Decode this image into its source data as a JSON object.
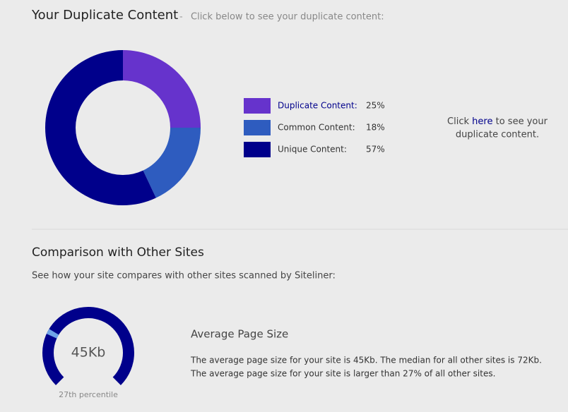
{
  "header": {
    "title": "Your Duplicate Content",
    "separator": "-",
    "subtitle": "Click below to see your duplicate content:"
  },
  "chart_data": {
    "type": "pie",
    "categories": [
      "Duplicate Content:",
      "Common Content:",
      "Unique Content:"
    ],
    "values": [
      25,
      18,
      57
    ],
    "value_labels": [
      "25%",
      "18%",
      "57%"
    ],
    "colors": [
      "#6633cc",
      "#2e5cbf",
      "#00008b"
    ]
  },
  "note": {
    "before": "Click",
    "link": "here",
    "after_1": "to see your",
    "after_2": "duplicate content."
  },
  "comparison": {
    "title": "Comparison with Other Sites",
    "description": "See how your site compares with other sites scanned by Siteliner:"
  },
  "gauge": {
    "value_label": "45Kb",
    "percentile": 27,
    "percentile_lim": [
      0,
      100
    ],
    "percentile_label": "27th percentile",
    "color": "#00008b",
    "marker_color": "#6fa3e8",
    "heading": "Average Page Size",
    "lines": [
      "The average page size for your site is 45Kb. The median for all other sites is 72Kb.",
      "The average page size for your site is larger than 27% of all other sites."
    ]
  }
}
